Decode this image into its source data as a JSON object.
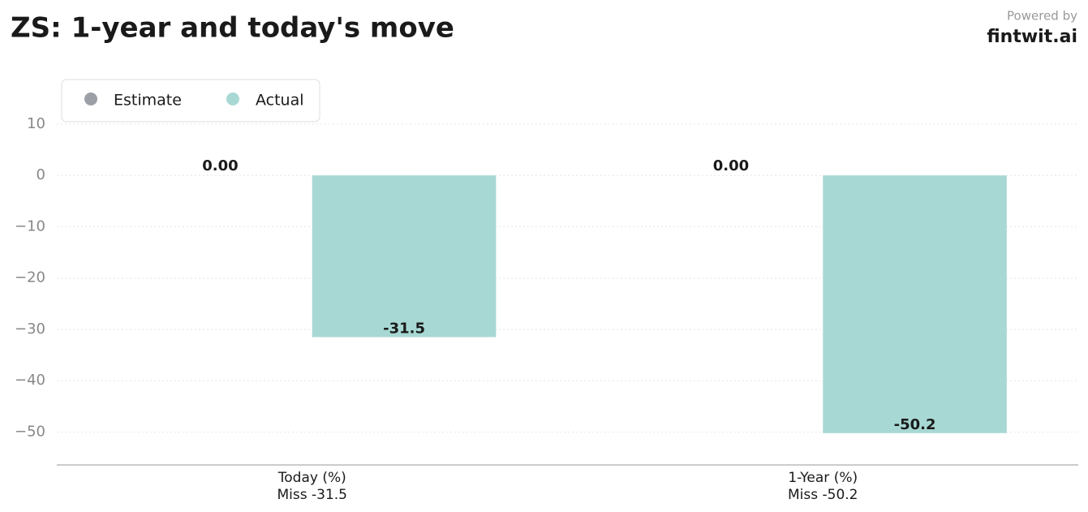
{
  "chart_data": {
    "type": "bar",
    "title": "ZS: 1-year and today's move",
    "brand_caption": "Powered by",
    "brand": "fintwit.ai",
    "categories": [
      "Today (%)",
      "1-Year (%)"
    ],
    "category_notes": [
      "Miss -31.5",
      "Miss -50.2"
    ],
    "series": [
      {
        "name": "Estimate",
        "color": "#9ca0a6",
        "values": [
          0,
          0
        ],
        "value_labels": [
          "0.00",
          "0.00"
        ]
      },
      {
        "name": "Actual",
        "color": "#a8d8d4",
        "values": [
          -31.5,
          -50.2
        ]
      }
    ],
    "ylim": [
      -56.4,
      19
    ],
    "yticks": [
      {
        "value": 10,
        "label": "10"
      },
      {
        "value": 0,
        "label": "0"
      },
      {
        "value": -10,
        "label": "−10"
      },
      {
        "value": -20,
        "label": "−20"
      },
      {
        "value": -30,
        "label": "−30"
      },
      {
        "value": -40,
        "label": "−40"
      },
      {
        "value": -50,
        "label": "−50"
      }
    ],
    "grid": true,
    "legend": "upper-left"
  }
}
